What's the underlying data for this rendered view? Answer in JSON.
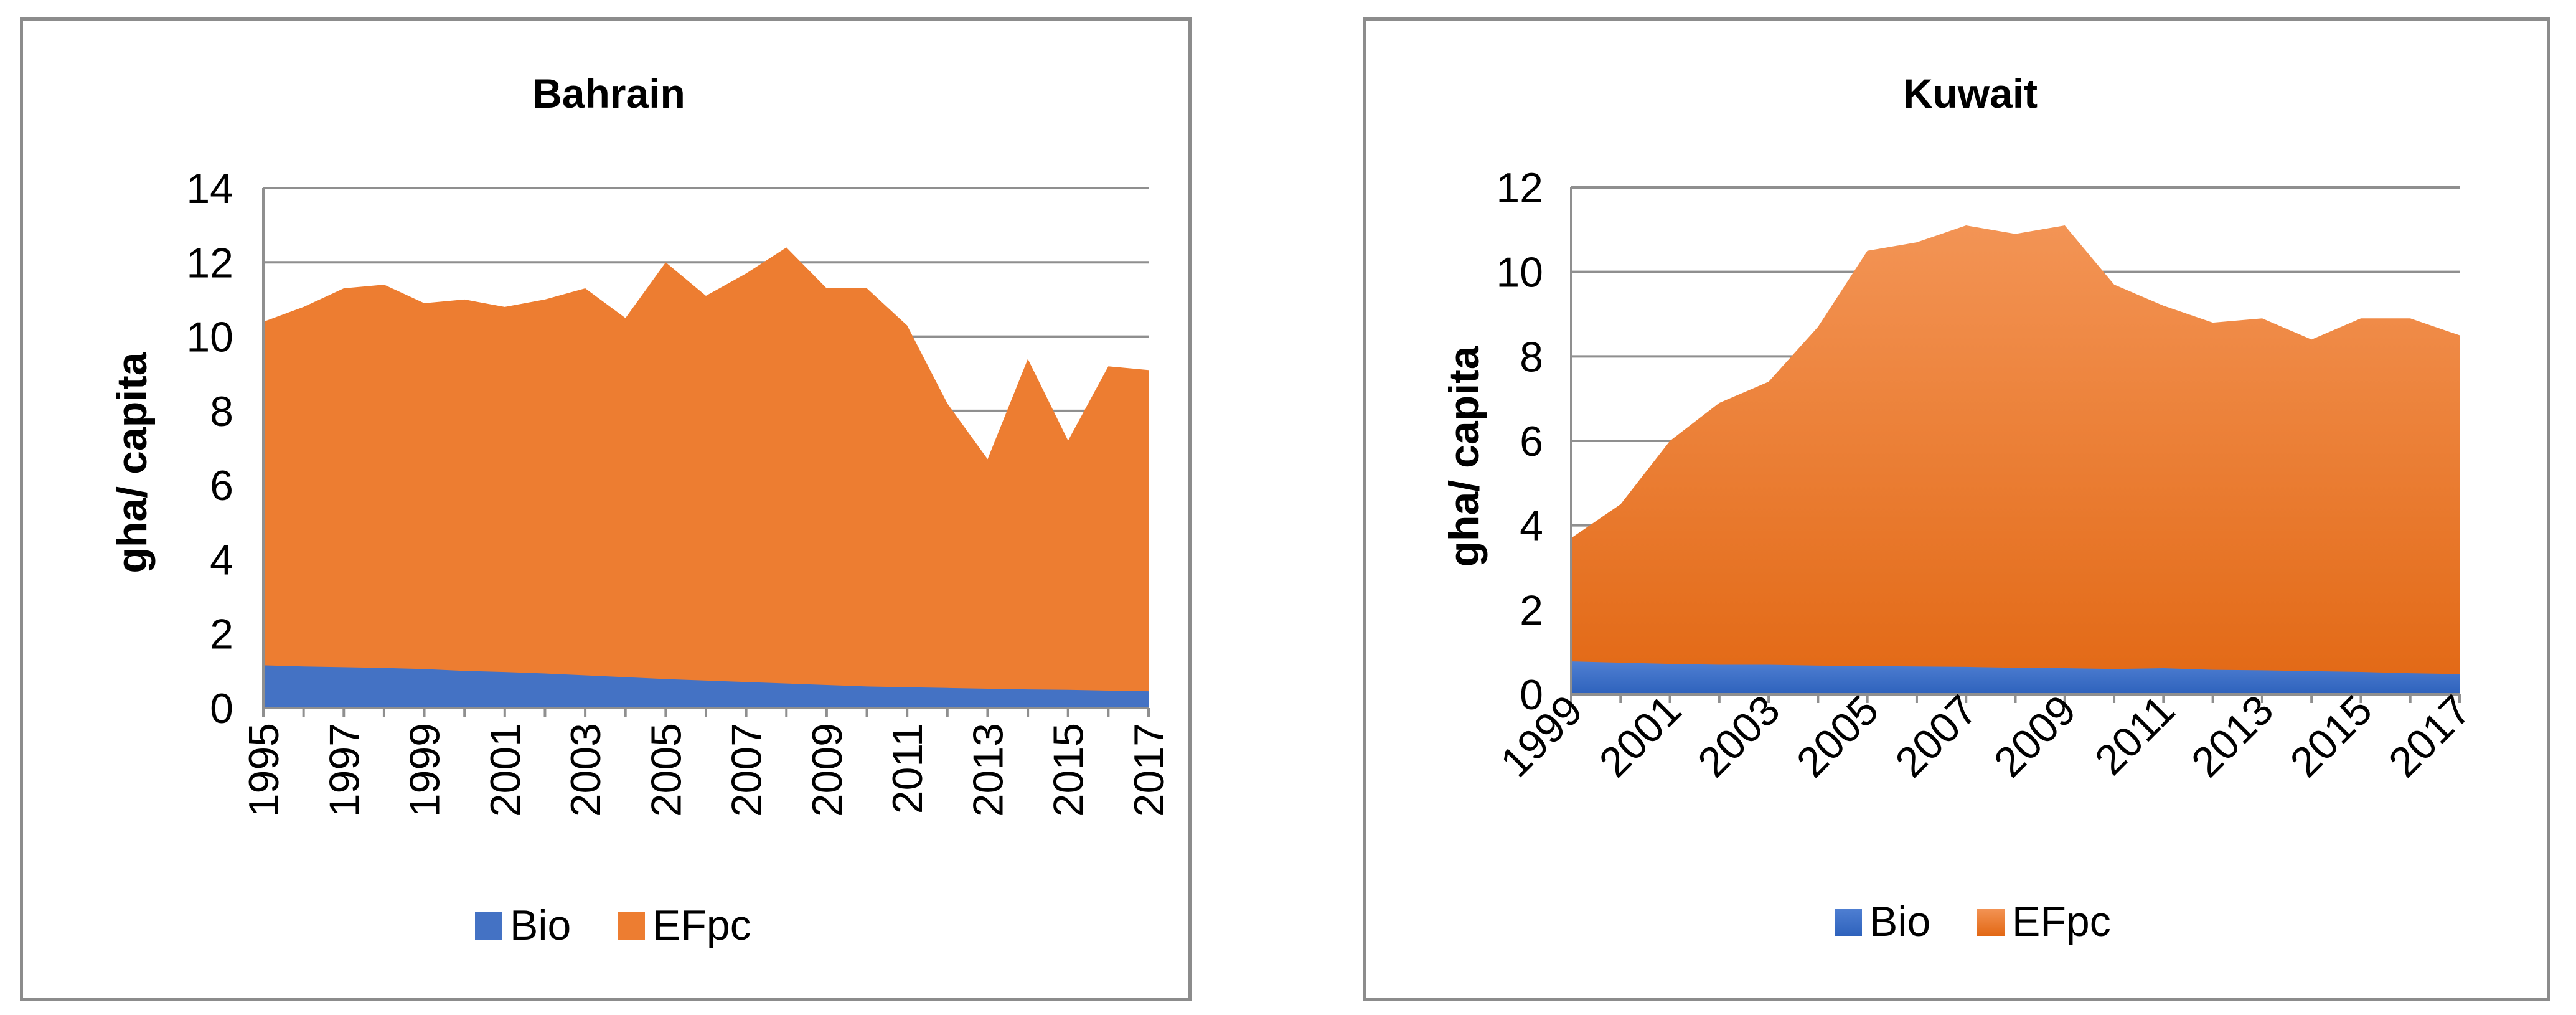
{
  "chart_data": [
    {
      "type": "area",
      "stacking": "overlapping",
      "title": "Bahrain",
      "ylabel": "gha/ capita",
      "xlabel": "",
      "ylim": [
        0,
        14
      ],
      "yticks": [
        0,
        2,
        4,
        6,
        8,
        10,
        12,
        14
      ],
      "x": [
        1995,
        1996,
        1997,
        1998,
        1999,
        2000,
        2001,
        2002,
        2003,
        2004,
        2005,
        2006,
        2007,
        2008,
        2009,
        2010,
        2011,
        2012,
        2013,
        2014,
        2015,
        2016,
        2017
      ],
      "xtick_labels": [
        "1995",
        "1997",
        "1999",
        "2001",
        "2003",
        "2005",
        "2007",
        "2009",
        "2011",
        "2013",
        "2015",
        "2017"
      ],
      "series": [
        {
          "name": "EFpc",
          "color": "#ED7D31",
          "values": [
            10.4,
            10.8,
            11.3,
            11.4,
            10.9,
            11.0,
            10.8,
            11.0,
            11.3,
            10.5,
            12.0,
            11.1,
            11.7,
            12.4,
            11.3,
            11.3,
            10.3,
            8.2,
            6.7,
            9.4,
            7.2,
            9.2,
            9.1
          ]
        },
        {
          "name": "Bio",
          "color": "#4472C4",
          "values": [
            1.15,
            1.12,
            1.1,
            1.08,
            1.05,
            1.0,
            0.97,
            0.93,
            0.88,
            0.83,
            0.78,
            0.74,
            0.7,
            0.66,
            0.62,
            0.58,
            0.56,
            0.54,
            0.52,
            0.5,
            0.49,
            0.47,
            0.45
          ]
        }
      ],
      "legend": [
        "Bio",
        "EFpc"
      ]
    },
    {
      "type": "area",
      "stacking": "overlapping",
      "title": "Kuwait",
      "ylabel": "gha/ capita",
      "xlabel": "",
      "ylim": [
        0,
        12
      ],
      "yticks": [
        0,
        2,
        4,
        6,
        8,
        10,
        12
      ],
      "x": [
        1999,
        2000,
        2001,
        2002,
        2003,
        2004,
        2005,
        2006,
        2007,
        2008,
        2009,
        2010,
        2011,
        2012,
        2013,
        2014,
        2015,
        2016,
        2017
      ],
      "xtick_labels": [
        "1999",
        "2001",
        "2003",
        "2005",
        "2007",
        "2009",
        "2011",
        "2013",
        "2015",
        "2017"
      ],
      "series": [
        {
          "name": "EFpc",
          "color": "#ED7D31",
          "values": [
            3.7,
            4.5,
            6.0,
            6.9,
            7.4,
            8.7,
            10.5,
            10.7,
            11.1,
            10.9,
            11.1,
            9.7,
            9.2,
            8.8,
            8.9,
            8.4,
            8.9,
            8.9,
            8.5
          ]
        },
        {
          "name": "Bio",
          "color": "#4472C4",
          "values": [
            0.78,
            0.75,
            0.72,
            0.7,
            0.7,
            0.68,
            0.67,
            0.66,
            0.65,
            0.63,
            0.62,
            0.6,
            0.62,
            0.58,
            0.57,
            0.55,
            0.53,
            0.5,
            0.48
          ]
        }
      ],
      "legend": [
        "Bio",
        "EFpc"
      ]
    }
  ]
}
